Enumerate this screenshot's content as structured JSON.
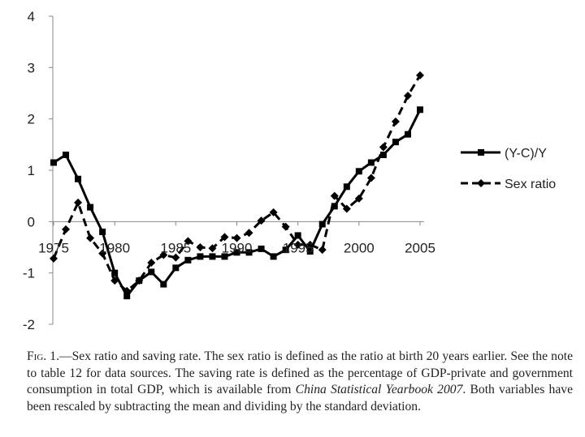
{
  "chart_data": {
    "type": "line",
    "title": "",
    "xlabel": "",
    "ylabel": "",
    "xlim": [
      1975,
      2005
    ],
    "ylim": [
      -2,
      4
    ],
    "x_ticks": [
      "1975",
      "1980",
      "1985",
      "1990",
      "1995",
      "2000",
      "2005"
    ],
    "y_ticks": [
      "4",
      "3",
      "2",
      "1",
      "0",
      "-1",
      "-2"
    ],
    "legend_position": "right",
    "grid": false,
    "series": [
      {
        "name": "(Y-C)/Y",
        "style": "solid",
        "marker": "square",
        "color": "#000000",
        "x": [
          1975,
          1976,
          1977,
          1978,
          1979,
          1980,
          1981,
          1982,
          1983,
          1984,
          1985,
          1986,
          1987,
          1988,
          1989,
          1990,
          1991,
          1992,
          1993,
          1994,
          1995,
          1996,
          1997,
          1998,
          1999,
          2000,
          2001,
          2002,
          2003,
          2004,
          2005
        ],
        "values": [
          1.15,
          1.3,
          0.83,
          0.28,
          -0.2,
          -1.0,
          -1.45,
          -1.15,
          -0.98,
          -1.22,
          -0.9,
          -0.75,
          -0.68,
          -0.68,
          -0.68,
          -0.6,
          -0.6,
          -0.53,
          -0.68,
          -0.55,
          -0.27,
          -0.58,
          -0.05,
          0.3,
          0.68,
          0.98,
          1.15,
          1.3,
          1.55,
          1.7,
          2.18
        ]
      },
      {
        "name": "Sex ratio",
        "style": "dashed",
        "marker": "diamond",
        "color": "#000000",
        "x": [
          1975,
          1976,
          1977,
          1978,
          1979,
          1980,
          1981,
          1982,
          1983,
          1984,
          1985,
          1986,
          1987,
          1988,
          1989,
          1990,
          1991,
          1992,
          1993,
          1994,
          1995,
          1996,
          1997,
          1998,
          1999,
          2000,
          2001,
          2002,
          2003,
          2004,
          2005
        ],
        "values": [
          -0.72,
          -0.15,
          0.37,
          -0.32,
          -0.62,
          -1.15,
          -1.35,
          -1.15,
          -0.8,
          -0.65,
          -0.7,
          -0.38,
          -0.5,
          -0.52,
          -0.3,
          -0.32,
          -0.22,
          0.02,
          0.18,
          -0.1,
          -0.45,
          -0.45,
          -0.55,
          0.5,
          0.25,
          0.45,
          0.85,
          1.45,
          1.95,
          2.45,
          2.85
        ]
      }
    ]
  },
  "caption": {
    "fig_label": "Fig. 1.",
    "text": "—Sex ratio and saving rate. The sex ratio is defined as the ratio at birth 20 years earlier. See the note to table 12 for data sources. The saving rate is defined as the percentage of GDP-private and government consumption in total GDP, which is available from ",
    "source_italic": "China Statistical Yearbook 2007",
    "text_end": ". Both variables have been rescaled by subtracting the mean and dividing by the standard deviation."
  }
}
